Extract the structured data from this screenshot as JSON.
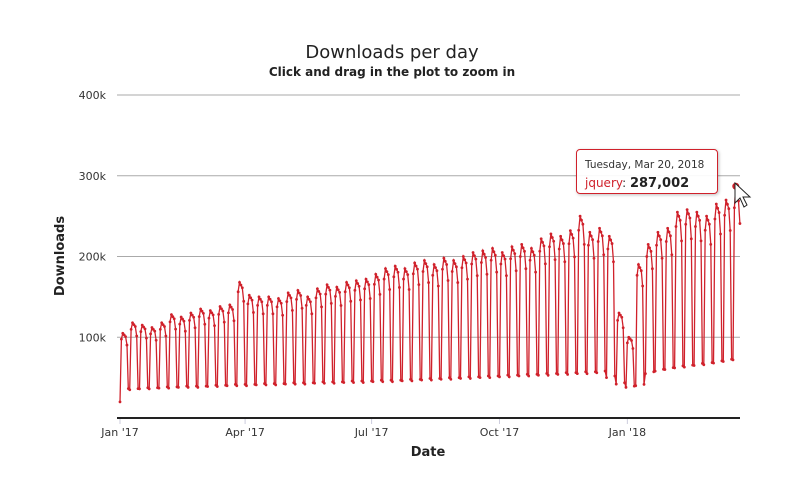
{
  "chart_data": {
    "type": "line",
    "title": "Downloads per day",
    "subtitle": "Click and drag in the plot to zoom in",
    "xlabel": "Date",
    "ylabel": "Downloads",
    "ylim": [
      0,
      400000
    ],
    "y_ticks": [
      {
        "v": 100000,
        "label": "100k"
      },
      {
        "v": 200000,
        "label": "200k"
      },
      {
        "v": 300000,
        "label": "300k"
      },
      {
        "v": 400000,
        "label": "400k"
      }
    ],
    "x_ticks": [
      {
        "day": 0,
        "label": "Jan '17"
      },
      {
        "day": 90,
        "label": "Apr '17"
      },
      {
        "day": 181,
        "label": "Jul '17"
      },
      {
        "day": 273,
        "label": "Oct '17"
      },
      {
        "day": 365,
        "label": "Jan '18"
      }
    ],
    "grid": true,
    "legend": "none",
    "color": "#d0212b",
    "series_name": "jquery",
    "start_date": "2017-01-01 (Sunday)",
    "end_day_index": 446,
    "weekly_weekday_peaks_k": [
      105,
      118,
      115,
      112,
      118,
      128,
      125,
      130,
      135,
      133,
      138,
      140,
      168,
      152,
      150,
      150,
      148,
      155,
      158,
      150,
      160,
      165,
      162,
      168,
      170,
      172,
      178,
      185,
      188,
      185,
      192,
      195,
      190,
      198,
      195,
      200,
      205,
      207,
      210,
      205,
      212,
      215,
      210,
      222,
      228,
      225,
      232,
      250,
      230,
      235,
      225,
      130,
      100,
      190,
      215,
      230,
      235,
      255,
      258,
      255,
      250,
      265,
      270,
      280,
      290
    ],
    "weekly_weekend_lows_k": [
      35,
      35,
      36,
      36,
      37,
      37,
      38,
      38,
      38,
      39,
      39,
      40,
      40,
      40,
      41,
      41,
      41,
      42,
      42,
      42,
      43,
      43,
      43,
      44,
      44,
      44,
      45,
      45,
      45,
      46,
      46,
      47,
      47,
      48,
      48,
      49,
      49,
      50,
      50,
      51,
      51,
      52,
      52,
      53,
      53,
      54,
      54,
      55,
      55,
      56,
      50,
      42,
      38,
      40,
      55,
      58,
      60,
      62,
      63,
      65,
      66,
      68,
      70,
      72,
      75
    ],
    "first_day_value": 20000,
    "highlight": {
      "day": 443,
      "date": "Tuesday, Mar 20, 2018",
      "series": "jquery",
      "value": 287002,
      "value_label": "287,002"
    }
  }
}
